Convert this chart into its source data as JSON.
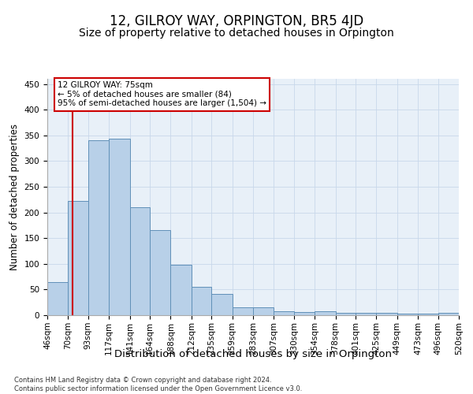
{
  "title": "12, GILROY WAY, ORPINGTON, BR5 4JD",
  "subtitle": "Size of property relative to detached houses in Orpington",
  "xlabel": "Distribution of detached houses by size in Orpington",
  "ylabel": "Number of detached properties",
  "footer_line1": "Contains HM Land Registry data © Crown copyright and database right 2024.",
  "footer_line2": "Contains public sector information licensed under the Open Government Licence v3.0.",
  "bin_edges": [
    46,
    70,
    93,
    117,
    141,
    164,
    188,
    212,
    235,
    259,
    283,
    307,
    330,
    354,
    378,
    401,
    425,
    449,
    473,
    496,
    520
  ],
  "bar_heights": [
    65,
    222,
    340,
    344,
    210,
    165,
    98,
    55,
    42,
    15,
    15,
    8,
    6,
    7,
    4,
    4,
    5,
    3,
    3,
    5
  ],
  "bar_color": "#b8d0e8",
  "bar_edge_color": "#6090b8",
  "red_line_x": 75,
  "red_line_color": "#cc0000",
  "annotation_text": "12 GILROY WAY: 75sqm\n← 5% of detached houses are smaller (84)\n95% of semi-detached houses are larger (1,504) →",
  "annotation_box_color": "#ffffff",
  "annotation_box_edge_color": "#cc0000",
  "ylim": [
    0,
    460
  ],
  "background_color": "#ffffff",
  "grid_color": "#c8d8ea",
  "title_fontsize": 12,
  "subtitle_fontsize": 10,
  "tick_label_fontsize": 7.5,
  "ylabel_fontsize": 8.5,
  "xlabel_fontsize": 9.5,
  "annotation_fontsize": 7.5,
  "footer_fontsize": 6
}
